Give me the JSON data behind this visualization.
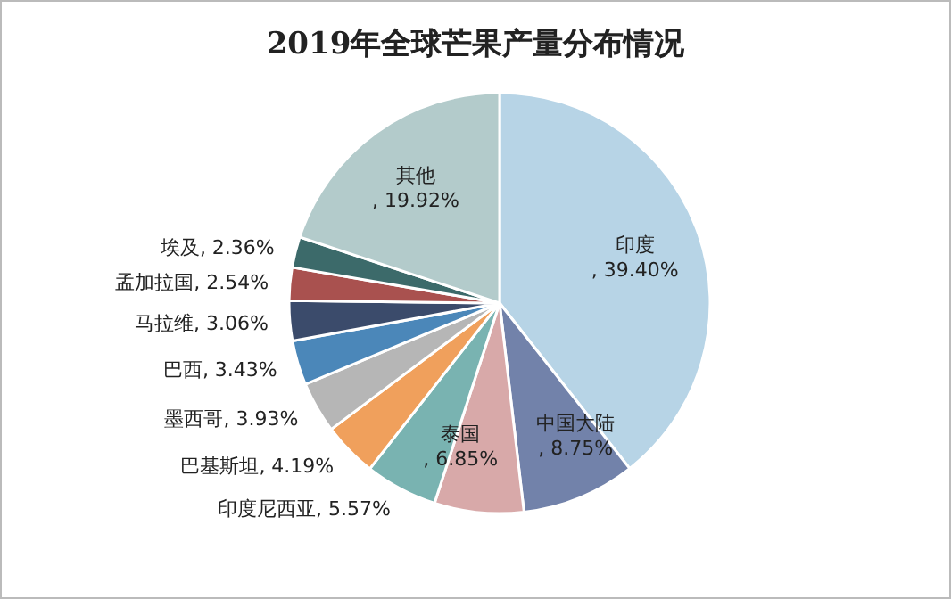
{
  "chart_data": {
    "type": "pie",
    "title": "2019年全球芒果产量分布情况",
    "categories": [
      "印度",
      "中国大陆",
      "泰国",
      "印度尼西亚",
      "巴基斯坦",
      "墨西哥",
      "巴西",
      "马拉维",
      "孟加拉国",
      "埃及",
      "其他"
    ],
    "values": [
      39.4,
      8.75,
      6.85,
      5.57,
      4.19,
      3.93,
      3.43,
      3.06,
      2.54,
      2.36,
      19.92
    ],
    "value_labels": [
      ", 39.40%",
      ", 8.75%",
      ", 6.85%",
      ", 5.57%",
      ", 4.19%",
      ", 3.93%",
      ", 3.43%",
      ", 3.06%",
      ", 2.54%",
      ", 2.36%",
      ", 19.92%"
    ],
    "colors": [
      "#b7d4e6",
      "#7282aa",
      "#d8a9a9",
      "#79b3b1",
      "#f0a05c",
      "#b6b6b6",
      "#4b87b9",
      "#3b4b6b",
      "#a9514f",
      "#3c6a6a",
      "#b3cbcb"
    ]
  }
}
